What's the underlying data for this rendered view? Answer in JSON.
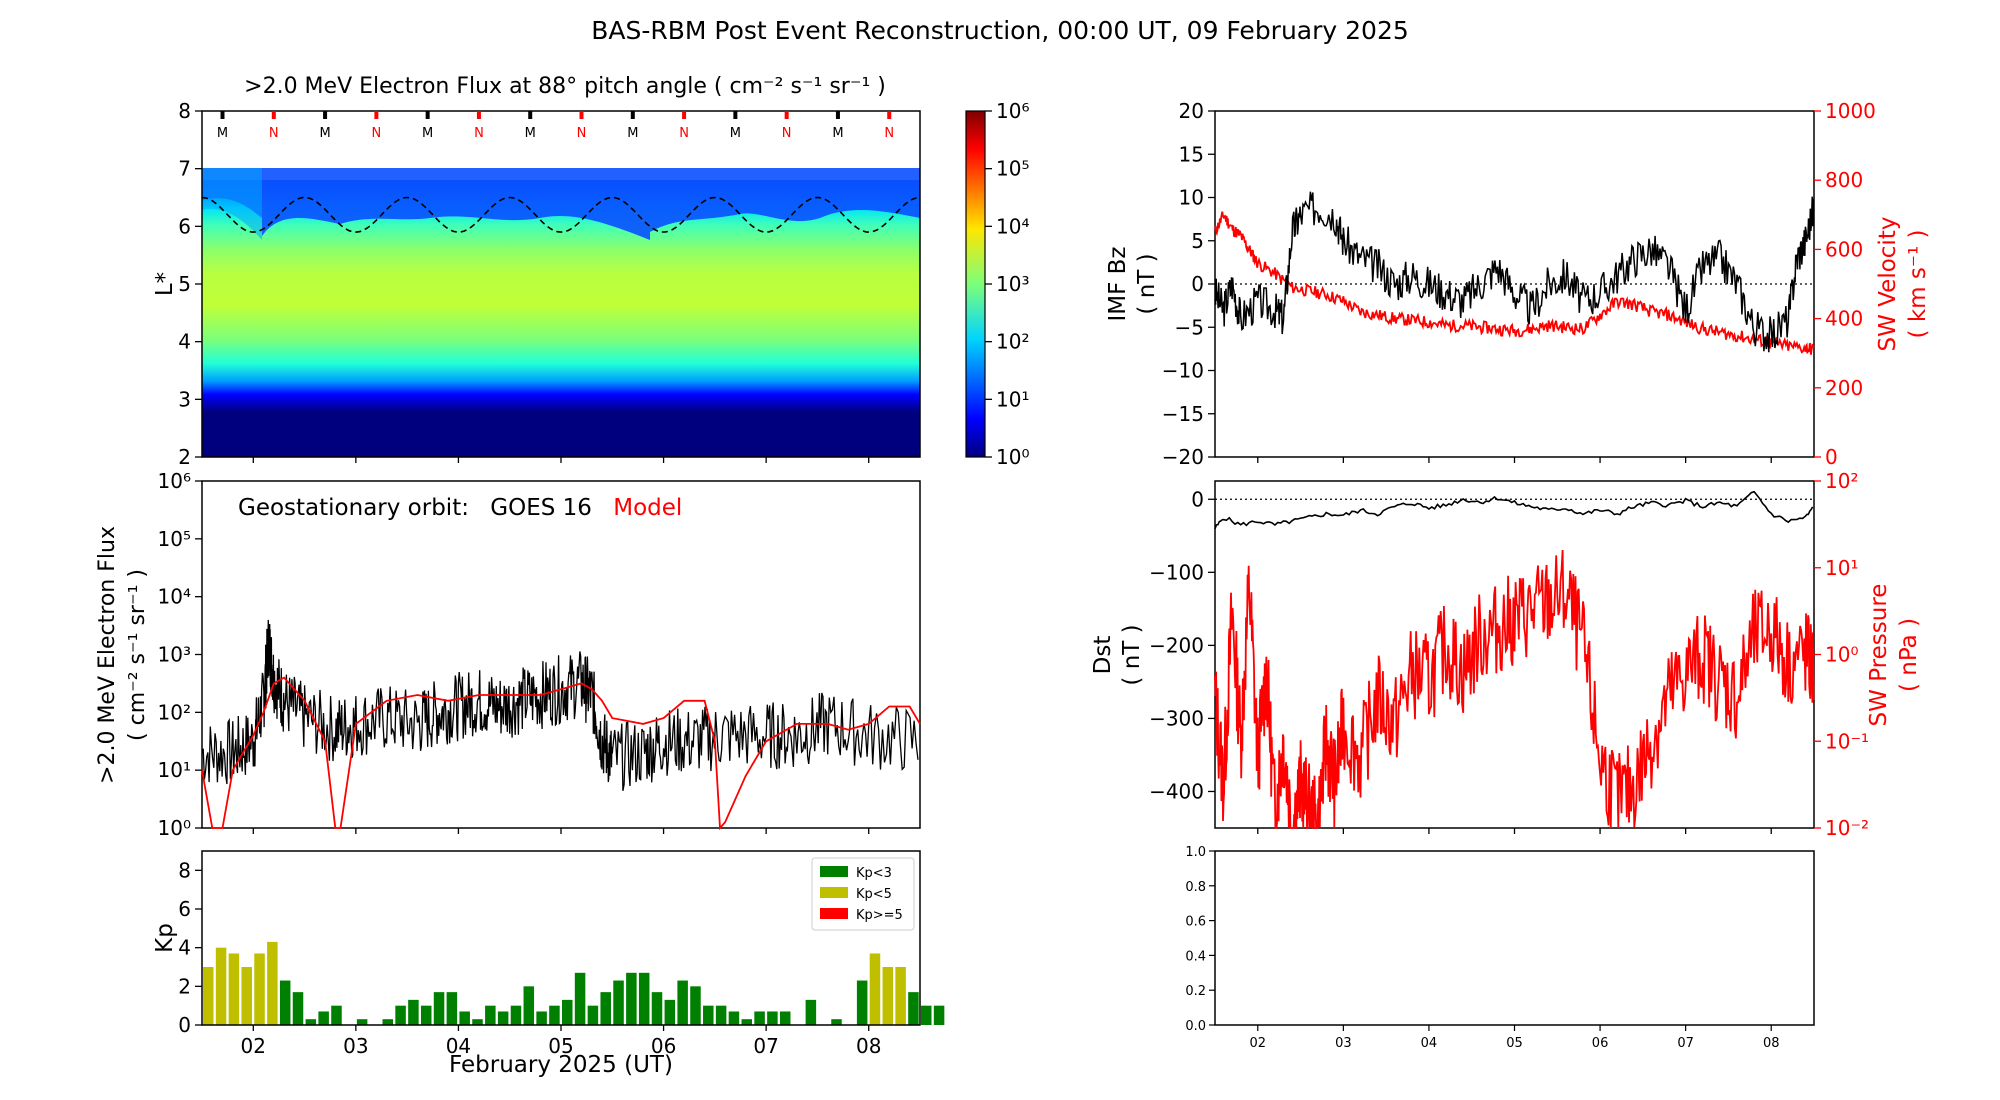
{
  "title": "BAS-RBM Post Event Reconstruction, 00:00 UT, 09 February 2025",
  "chart_data": [
    {
      "id": "flux_map",
      "type": "heatmap",
      "title": ">2.0 MeV Electron Flux at 88° pitch angle ( cm⁻² s⁻¹ sr⁻¹ )",
      "ylabel": "L*",
      "ylim": [
        2,
        8
      ],
      "yticks": [
        "2",
        "3",
        "4",
        "5",
        "6",
        "7",
        "8"
      ],
      "colorbar_ticks": [
        "10⁰",
        "10¹",
        "10²",
        "10³",
        "10⁴",
        "10⁵",
        "10⁶"
      ],
      "colorbar_log_range": [
        0,
        6
      ],
      "mlt_markers": [
        "M",
        "N",
        "M",
        "N",
        "M",
        "N",
        "M",
        "N",
        "M",
        "N",
        "M",
        "N",
        "M",
        "N"
      ],
      "marker_colors": {
        "M": "#000000",
        "N": "#ff0000"
      },
      "magnetopause_Lstar_range": [
        5.9,
        6.5
      ]
    },
    {
      "id": "geo_flux",
      "type": "line",
      "ylabel": ">2.0 MeV Electron Flux",
      "ylabel2": "( cm⁻² s⁻¹ sr⁻¹ )",
      "yticks": [
        "10⁰",
        "10¹",
        "10²",
        "10³",
        "10⁴",
        "10⁵",
        "10⁶"
      ],
      "ylog_range": [
        0,
        6
      ],
      "annotation_prefix": "Geostationary orbit:",
      "annotation_sat": "GOES 16",
      "annotation_model": "Model",
      "series": [
        {
          "name": "GOES 16",
          "color": "#000000",
          "x": [
            1.5,
            1.8,
            2.0,
            2.1,
            2.15,
            2.2,
            2.3,
            2.5,
            2.8,
            3.0,
            3.3,
            3.6,
            3.8,
            4.0,
            4.2,
            4.4,
            4.6,
            4.8,
            5.0,
            5.2,
            5.3,
            5.4,
            5.5,
            5.8,
            6.0,
            6.3,
            6.6,
            7.0,
            7.3,
            7.6,
            8.0,
            8.5
          ],
          "y": [
            1.3,
            1.3,
            1.5,
            2.2,
            3.2,
            2.6,
            2.2,
            1.9,
            1.7,
            1.8,
            1.9,
            1.8,
            2.0,
            2.1,
            2.2,
            2.1,
            2.2,
            2.3,
            2.4,
            2.5,
            2.3,
            1.5,
            1.2,
            1.3,
            1.5,
            1.5,
            1.6,
            1.6,
            1.6,
            1.8,
            1.6,
            1.5
          ]
        },
        {
          "name": "Model",
          "color": "#ff0000",
          "x": [
            1.5,
            1.6,
            1.7,
            1.8,
            1.9,
            2.0,
            2.1,
            2.2,
            2.3,
            2.4,
            2.5,
            2.7,
            2.8,
            2.85,
            3.0,
            3.3,
            3.6,
            3.9,
            4.2,
            4.5,
            4.8,
            5.0,
            5.2,
            5.3,
            5.4,
            5.5,
            5.8,
            6.0,
            6.2,
            6.4,
            6.5,
            6.55,
            6.6,
            6.8,
            7.0,
            7.3,
            7.6,
            7.8,
            8.0,
            8.2,
            8.4,
            8.5
          ],
          "y": [
            1.0,
            0.0,
            0.0,
            1.0,
            1.3,
            1.6,
            2.0,
            2.5,
            2.6,
            2.4,
            2.2,
            1.5,
            0.0,
            0.0,
            1.8,
            2.2,
            2.3,
            2.2,
            2.3,
            2.3,
            2.3,
            2.4,
            2.5,
            2.4,
            2.2,
            1.9,
            1.8,
            1.9,
            2.2,
            2.2,
            1.5,
            0.0,
            0.1,
            0.9,
            1.5,
            1.8,
            1.8,
            1.7,
            1.8,
            2.1,
            2.1,
            1.8
          ]
        }
      ]
    },
    {
      "id": "kp",
      "type": "bar",
      "ylabel": "Kp",
      "ylim": [
        0,
        9
      ],
      "yticks": [
        "0",
        "2",
        "4",
        "6",
        "8"
      ],
      "xlabel": "February 2025 (UT)",
      "xticks": [
        "02",
        "03",
        "04",
        "05",
        "06",
        "07",
        "08"
      ],
      "x_start_day": 1.5,
      "bin_hours": 3,
      "values": [
        3.0,
        4.0,
        3.7,
        3.0,
        3.7,
        4.3,
        2.3,
        1.7,
        0.3,
        0.7,
        1.0,
        0.0,
        0.3,
        0.0,
        0.3,
        1.0,
        1.3,
        1.0,
        1.7,
        1.7,
        0.7,
        0.3,
        1.0,
        0.7,
        1.0,
        2.0,
        0.7,
        1.0,
        1.3,
        2.7,
        1.0,
        1.7,
        2.3,
        2.7,
        2.7,
        1.7,
        1.3,
        2.3,
        2.0,
        1.0,
        1.0,
        0.7,
        0.3,
        0.7,
        0.7,
        0.7,
        0.0,
        1.3,
        0.0,
        0.3,
        0.0,
        2.3,
        3.7,
        3.0,
        3.0,
        1.7,
        1.0,
        1.0
      ],
      "legend": [
        {
          "label": "Kp<3",
          "color": "#008000"
        },
        {
          "label": "Kp<5",
          "color": "#bfbf00"
        },
        {
          "label": "Kp>=5",
          "color": "#ff0000"
        }
      ],
      "legend_position": "top-right"
    },
    {
      "id": "imf_sw",
      "type": "line",
      "ylabel": "IMF Bz",
      "ylabel_unit": "( nT )",
      "ylim": [
        -20,
        20
      ],
      "yticks": [
        "−20",
        "−15",
        "−10",
        "−5",
        "0",
        "5",
        "10",
        "15",
        "20"
      ],
      "ylabel_right": "SW Velocity",
      "ylabel_right_unit": "( km s⁻¹ )",
      "ylim_right": [
        0,
        1000
      ],
      "yticks_right": [
        "0",
        "200",
        "400",
        "600",
        "800",
        "1000"
      ],
      "series": [
        {
          "name": "IMF Bz",
          "color": "#000000",
          "x": [
            1.5,
            1.6,
            1.7,
            1.8,
            2.0,
            2.2,
            2.3,
            2.4,
            2.5,
            2.7,
            2.9,
            3.0,
            3.2,
            3.4,
            3.6,
            3.8,
            4.0,
            4.2,
            4.4,
            4.6,
            4.8,
            5.0,
            5.2,
            5.4,
            5.6,
            5.8,
            6.0,
            6.2,
            6.4,
            6.6,
            6.8,
            7.0,
            7.2,
            7.4,
            7.6,
            7.8,
            8.0,
            8.2,
            8.3,
            8.4,
            8.5
          ],
          "y": [
            -1,
            -3,
            0,
            -4,
            -2,
            -3,
            -4,
            6,
            8,
            9,
            8,
            5,
            3,
            2,
            0,
            1,
            0,
            -1,
            -2,
            0,
            2,
            -1,
            -3,
            0,
            1,
            -2,
            -1,
            1,
            3,
            4,
            2,
            -3,
            2,
            3,
            0,
            -5,
            -6,
            -4,
            3,
            5,
            9
          ]
        },
        {
          "name": "SW Velocity",
          "color": "#ff0000",
          "axis": "right",
          "x": [
            1.5,
            1.6,
            1.7,
            1.8,
            1.9,
            2.0,
            2.2,
            2.4,
            2.6,
            2.8,
            3.0,
            3.2,
            3.4,
            3.6,
            3.8,
            4.0,
            4.2,
            4.4,
            4.6,
            4.8,
            5.0,
            5.2,
            5.4,
            5.6,
            5.8,
            6.0,
            6.2,
            6.4,
            6.6,
            6.8,
            7.0,
            7.2,
            7.4,
            7.6,
            7.8,
            8.0,
            8.2,
            8.4,
            8.5
          ],
          "y": [
            650,
            700,
            660,
            640,
            600,
            560,
            530,
            490,
            480,
            470,
            450,
            420,
            410,
            400,
            395,
            390,
            380,
            380,
            375,
            370,
            365,
            370,
            380,
            375,
            370,
            410,
            450,
            440,
            420,
            410,
            390,
            370,
            360,
            350,
            340,
            330,
            320,
            315,
            310
          ]
        }
      ],
      "zero_line": true
    },
    {
      "id": "dst_pressure",
      "type": "line",
      "ylabel": "Dst",
      "ylabel_unit": "( nT )",
      "ylim": [
        -450,
        25
      ],
      "yticks": [
        "−400",
        "−300",
        "−200",
        "−100",
        "0"
      ],
      "ylabel_right": "SW Pressure",
      "ylabel_right_unit": "( nPa )",
      "ylog_right_range": [
        -2,
        2
      ],
      "yticks_right": [
        "10⁻²",
        "10⁻¹",
        "10⁰",
        "10¹",
        "10²"
      ],
      "series": [
        {
          "name": "Dst",
          "color": "#000000",
          "x": [
            1.5,
            1.6,
            1.8,
            2.0,
            2.2,
            2.4,
            2.6,
            2.8,
            3.0,
            3.2,
            3.4,
            3.6,
            3.8,
            4.0,
            4.2,
            4.4,
            4.6,
            4.8,
            5.0,
            5.2,
            5.4,
            5.6,
            5.8,
            6.0,
            6.2,
            6.4,
            6.6,
            6.8,
            7.0,
            7.2,
            7.4,
            7.6,
            7.8,
            8.0,
            8.2,
            8.4,
            8.5
          ],
          "y": [
            -40,
            -25,
            -35,
            -30,
            -35,
            -30,
            -25,
            -20,
            -22,
            -15,
            -20,
            -10,
            -5,
            -12,
            -8,
            0,
            -4,
            2,
            -5,
            -10,
            -15,
            -12,
            -20,
            -15,
            -20,
            -10,
            -5,
            -8,
            -2,
            -10,
            -5,
            -10,
            10,
            -20,
            -30,
            -25,
            -10
          ]
        },
        {
          "name": "SW Pressure",
          "color": "#ff0000",
          "axis": "right",
          "x": [
            1.5,
            1.6,
            1.7,
            1.8,
            1.9,
            2.0,
            2.1,
            2.2,
            2.3,
            2.4,
            2.5,
            2.6,
            2.7,
            2.8,
            2.9,
            3.0,
            3.2,
            3.4,
            3.6,
            3.8,
            4.0,
            4.2,
            4.4,
            4.6,
            4.8,
            5.0,
            5.2,
            5.4,
            5.6,
            5.8,
            6.0,
            6.2,
            6.4,
            6.6,
            6.8,
            7.0,
            7.2,
            7.4,
            7.6,
            7.8,
            8.0,
            8.2,
            8.4,
            8.5
          ],
          "y": [
            -0.5,
            -1.5,
            0.5,
            -1.0,
            0.8,
            -1.2,
            -0.2,
            -1.8,
            -1.0,
            -2.0,
            -1.5,
            -1.8,
            -2.0,
            -1.0,
            -1.5,
            -0.8,
            -1.2,
            -0.5,
            -0.8,
            -0.2,
            -0.3,
            0.1,
            -0.2,
            0.2,
            0.3,
            0.4,
            0.5,
            0.6,
            0.7,
            0.1,
            -1.2,
            -1.7,
            -1.5,
            -1.0,
            -0.5,
            -0.2,
            0.0,
            -0.3,
            -0.5,
            0.2,
            0.3,
            -0.1,
            0.0,
            -0.2
          ]
        }
      ],
      "zero_line": true
    },
    {
      "id": "empty_panel",
      "type": "line",
      "ylim": [
        0,
        1
      ],
      "yticks": [
        "0.0",
        "0.2",
        "0.4",
        "0.6",
        "0.8",
        "1.0"
      ],
      "xticks": [
        "02",
        "03",
        "04",
        "05",
        "06",
        "07",
        "08"
      ]
    }
  ]
}
